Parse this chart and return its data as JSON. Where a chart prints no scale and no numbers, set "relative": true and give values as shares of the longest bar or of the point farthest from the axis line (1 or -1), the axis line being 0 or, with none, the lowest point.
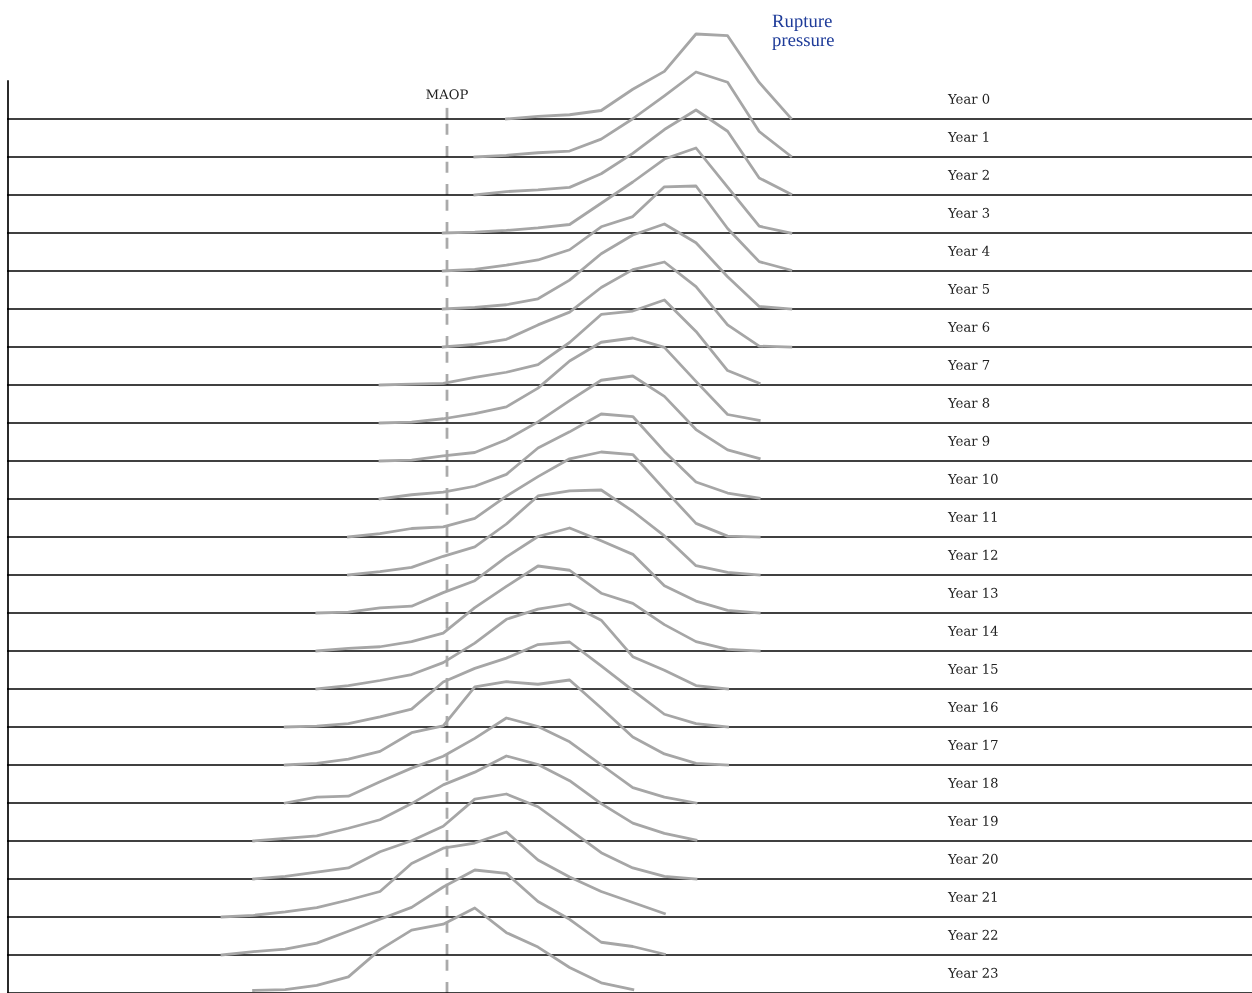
{
  "chart_data": [
    {
      "type": "line",
      "annotations": [
        "MAOP",
        "Rupture\npressure"
      ],
      "relative": true,
      "categories": [
        null,
        null,
        null,
        null,
        null,
        null,
        null,
        null,
        null,
        null,
        null,
        null,
        null,
        null,
        null,
        null,
        null,
        null,
        null
      ],
      "series": [
        {
          "name": "Year 0",
          "color": "#a6a6a6",
          "values": [
            null,
            null,
            null,
            null,
            null,
            null,
            null,
            null,
            null,
            0,
            0.03,
            0.05,
            0.1,
            0.35,
            0.56,
            1,
            0.98,
            0.43,
            0.01
          ]
        }
      ]
    },
    {
      "type": "line",
      "relative": true,
      "categories": [
        null,
        null,
        null,
        null,
        null,
        null,
        null,
        null,
        null,
        null,
        null,
        null,
        null,
        null,
        null,
        null,
        null,
        null,
        null
      ],
      "series": [
        {
          "name": "Year 1",
          "color": "#a6a6a6",
          "values": [
            null,
            null,
            null,
            null,
            null,
            null,
            null,
            null,
            0,
            0.02,
            0.05,
            0.07,
            0.21,
            0.45,
            0.72,
            1,
            0.88,
            0.3,
            0.01
          ]
        }
      ]
    },
    {
      "type": "line",
      "relative": true,
      "categories": [
        null,
        null,
        null,
        null,
        null,
        null,
        null,
        null,
        null,
        null,
        null,
        null,
        null,
        null,
        null,
        null,
        null,
        null,
        null
      ],
      "series": [
        {
          "name": "Year 2",
          "color": "#a6a6a6",
          "values": [
            null,
            null,
            null,
            null,
            null,
            null,
            null,
            null,
            0,
            0.04,
            0.06,
            0.09,
            0.25,
            0.49,
            0.77,
            1,
            0.75,
            0.2,
            0.01
          ]
        }
      ]
    },
    {
      "type": "line",
      "relative": true,
      "categories": [
        null,
        null,
        null,
        null,
        null,
        null,
        null,
        null,
        null,
        null,
        null,
        null,
        null,
        null,
        null,
        null,
        null,
        null,
        null
      ],
      "series": [
        {
          "name": "Year 3",
          "color": "#a6a6a6",
          "values": [
            null,
            null,
            null,
            null,
            null,
            null,
            null,
            0,
            0.01,
            0.03,
            0.06,
            0.1,
            0.35,
            0.6,
            0.87,
            1,
            0.54,
            0.08,
            0
          ]
        }
      ]
    },
    {
      "type": "line",
      "relative": true,
      "categories": [
        null,
        null,
        null,
        null,
        null,
        null,
        null,
        null,
        null,
        null,
        null,
        null,
        null,
        null,
        null,
        null,
        null,
        null,
        null
      ],
      "series": [
        {
          "name": "Year 4",
          "color": "#a6a6a6",
          "values": [
            null,
            null,
            null,
            null,
            null,
            null,
            null,
            0,
            0.02,
            0.07,
            0.13,
            0.25,
            0.52,
            0.64,
            0.99,
            1,
            0.5,
            0.11,
            0.01
          ]
        }
      ]
    },
    {
      "type": "line",
      "relative": true,
      "categories": [
        null,
        null,
        null,
        null,
        null,
        null,
        null,
        null,
        null,
        null,
        null,
        null,
        null,
        null,
        null,
        null,
        null,
        null,
        null
      ],
      "series": [
        {
          "name": "Year 5",
          "color": "#a6a6a6",
          "values": [
            null,
            null,
            null,
            null,
            null,
            null,
            null,
            0,
            0.02,
            0.05,
            0.12,
            0.34,
            0.65,
            0.87,
            1,
            0.78,
            0.38,
            0.03,
            0
          ]
        }
      ]
    },
    {
      "type": "line",
      "relative": true,
      "categories": [
        null,
        null,
        null,
        null,
        null,
        null,
        null,
        null,
        null,
        null,
        null,
        null,
        null,
        null,
        null,
        null,
        null,
        null,
        null
      ],
      "series": [
        {
          "name": "Year 6",
          "color": "#a6a6a6",
          "values": [
            null,
            null,
            null,
            null,
            null,
            null,
            null,
            0,
            0.03,
            0.09,
            0.26,
            0.41,
            0.7,
            0.91,
            1,
            0.71,
            0.26,
            0.01,
            0
          ]
        }
      ]
    },
    {
      "type": "line",
      "relative": true,
      "categories": [
        null,
        null,
        null,
        null,
        null,
        null,
        null,
        null,
        null,
        null,
        null,
        null,
        null,
        null,
        null,
        null,
        null,
        null,
        null
      ],
      "series": [
        {
          "name": "Year 7",
          "color": "#a6a6a6",
          "values": [
            null,
            null,
            null,
            null,
            null,
            0,
            0.01,
            0.02,
            0.09,
            0.15,
            0.24,
            0.5,
            0.83,
            0.87,
            1,
            0.63,
            0.17,
            0.02,
            null
          ]
        }
      ]
    },
    {
      "type": "line",
      "relative": true,
      "categories": [
        null,
        null,
        null,
        null,
        null,
        null,
        null,
        null,
        null,
        null,
        null,
        null,
        null,
        null,
        null,
        null,
        null,
        null,
        null
      ],
      "series": [
        {
          "name": "Year 8",
          "color": "#a6a6a6",
          "values": [
            null,
            null,
            null,
            null,
            null,
            0,
            0.01,
            0.05,
            0.11,
            0.19,
            0.41,
            0.73,
            0.95,
            1,
            0.89,
            0.49,
            0.1,
            0.03,
            null
          ]
        }
      ]
    },
    {
      "type": "line",
      "relative": true,
      "categories": [
        null,
        null,
        null,
        null,
        null,
        null,
        null,
        null,
        null,
        null,
        null,
        null,
        null,
        null,
        null,
        null,
        null,
        null,
        null
      ],
      "series": [
        {
          "name": "Year 9",
          "color": "#a6a6a6",
          "values": [
            null,
            null,
            null,
            null,
            null,
            0,
            0.01,
            0.06,
            0.1,
            0.25,
            0.46,
            0.71,
            0.95,
            1,
            0.76,
            0.37,
            0.13,
            0.03,
            null
          ]
        }
      ]
    },
    {
      "type": "line",
      "relative": true,
      "categories": [
        null,
        null,
        null,
        null,
        null,
        null,
        null,
        null,
        null,
        null,
        null,
        null,
        null,
        null,
        null,
        null,
        null,
        null,
        null
      ],
      "series": [
        {
          "name": "Year 10",
          "color": "#a6a6a6",
          "values": [
            null,
            null,
            null,
            null,
            null,
            0,
            0.05,
            0.08,
            0.15,
            0.29,
            0.6,
            0.79,
            1,
            0.97,
            0.56,
            0.2,
            0.07,
            0.01,
            null
          ]
        }
      ]
    },
    {
      "type": "line",
      "relative": true,
      "categories": [
        null,
        null,
        null,
        null,
        null,
        null,
        null,
        null,
        null,
        null,
        null,
        null,
        null,
        null,
        null,
        null,
        null,
        null,
        null
      ],
      "series": [
        {
          "name": "Year 11",
          "color": "#a6a6a6",
          "values": [
            null,
            null,
            null,
            null,
            0,
            0.04,
            0.1,
            0.12,
            0.22,
            0.48,
            0.71,
            0.92,
            1,
            0.97,
            0.56,
            0.16,
            0.01,
            0,
            null
          ]
        }
      ]
    },
    {
      "type": "line",
      "relative": true,
      "categories": [
        null,
        null,
        null,
        null,
        null,
        null,
        null,
        null,
        null,
        null,
        null,
        null,
        null,
        null,
        null,
        null,
        null,
        null,
        null
      ],
      "series": [
        {
          "name": "Year 12",
          "color": "#a6a6a6",
          "values": [
            null,
            null,
            null,
            null,
            0,
            0.04,
            0.09,
            0.22,
            0.33,
            0.6,
            0.93,
            0.99,
            1,
            0.75,
            0.46,
            0.11,
            0.03,
            0,
            null
          ]
        }
      ]
    },
    {
      "type": "line",
      "relative": true,
      "categories": [
        null,
        null,
        null,
        null,
        null,
        null,
        null,
        null,
        null,
        null,
        null,
        null,
        null,
        null,
        null,
        null,
        null,
        null,
        null
      ],
      "series": [
        {
          "name": "Year 13",
          "color": "#a6a6a6",
          "values": [
            null,
            null,
            null,
            0,
            0.01,
            0.06,
            0.08,
            0.24,
            0.38,
            0.66,
            0.9,
            1,
            0.85,
            0.69,
            0.32,
            0.14,
            0.03,
            0,
            null
          ]
        }
      ]
    },
    {
      "type": "line",
      "relative": true,
      "categories": [
        null,
        null,
        null,
        null,
        null,
        null,
        null,
        null,
        null,
        null,
        null,
        null,
        null,
        null,
        null,
        null,
        null,
        null,
        null
      ],
      "series": [
        {
          "name": "Year 14",
          "color": "#a6a6a6",
          "values": [
            null,
            null,
            null,
            0,
            0.03,
            0.05,
            0.11,
            0.21,
            0.51,
            0.76,
            1,
            0.95,
            0.68,
            0.56,
            0.31,
            0.11,
            0.02,
            0,
            null
          ]
        }
      ]
    },
    {
      "type": "line",
      "relative": true,
      "categories": [
        null,
        null,
        null,
        null,
        null,
        null,
        null,
        null,
        null,
        null,
        null,
        null,
        null,
        null,
        null,
        null,
        null,
        null,
        null
      ],
      "series": [
        {
          "name": "Year 15",
          "color": "#a6a6a6",
          "values": [
            null,
            null,
            null,
            0,
            0.04,
            0.1,
            0.17,
            0.31,
            0.54,
            0.82,
            0.94,
            1,
            0.81,
            0.38,
            0.22,
            0.04,
            0,
            null,
            null
          ]
        }
      ]
    },
    {
      "type": "line",
      "relative": true,
      "categories": [
        null,
        null,
        null,
        null,
        null,
        null,
        null,
        null,
        null,
        null,
        null,
        null,
        null,
        null,
        null,
        null,
        null,
        null,
        null
      ],
      "series": [
        {
          "name": "Year 16",
          "color": "#a6a6a6",
          "values": [
            null,
            null,
            0,
            0.01,
            0.04,
            0.12,
            0.21,
            0.53,
            0.69,
            0.81,
            0.97,
            1,
            0.72,
            0.43,
            0.15,
            0.04,
            0,
            null,
            null
          ]
        }
      ]
    },
    {
      "type": "line",
      "relative": true,
      "categories": [
        null,
        null,
        null,
        null,
        null,
        null,
        null,
        null,
        null,
        null,
        null,
        null,
        null,
        null,
        null,
        null,
        null,
        null,
        null
      ],
      "series": [
        {
          "name": "Year 17",
          "color": "#a6a6a6",
          "values": [
            null,
            null,
            0,
            0.02,
            0.07,
            0.16,
            0.38,
            0.46,
            0.92,
            0.98,
            0.95,
            1,
            0.67,
            0.33,
            0.13,
            0.02,
            0,
            null,
            null
          ]
        }
      ]
    },
    {
      "type": "line",
      "relative": true,
      "categories": [
        null,
        null,
        null,
        null,
        null,
        null,
        null,
        null,
        null,
        null,
        null,
        null,
        null,
        null,
        null,
        null,
        null,
        null,
        null
      ],
      "series": [
        {
          "name": "Year 18",
          "color": "#a6a6a6",
          "values": [
            null,
            null,
            0,
            0.07,
            0.08,
            0.25,
            0.41,
            0.55,
            0.76,
            1,
            0.9,
            0.72,
            0.45,
            0.18,
            0.07,
            0,
            null,
            null,
            null
          ]
        }
      ]
    },
    {
      "type": "line",
      "relative": true,
      "categories": [
        null,
        null,
        null,
        null,
        null,
        null,
        null,
        null,
        null,
        null,
        null,
        null,
        null,
        null,
        null,
        null,
        null,
        null,
        null
      ],
      "series": [
        {
          "name": "Year 19",
          "color": "#a6a6a6",
          "values": [
            null,
            0,
            0.03,
            0.06,
            0.15,
            0.25,
            0.44,
            0.66,
            0.81,
            1,
            0.9,
            0.71,
            0.44,
            0.21,
            0.09,
            0.01,
            null,
            null,
            null
          ]
        }
      ]
    },
    {
      "type": "line",
      "relative": true,
      "categories": [
        null,
        null,
        null,
        null,
        null,
        null,
        null,
        null,
        null,
        null,
        null,
        null,
        null,
        null,
        null,
        null,
        null,
        null,
        null
      ],
      "series": [
        {
          "name": "Year 20",
          "color": "#a6a6a6",
          "values": [
            null,
            0,
            0.03,
            0.08,
            0.13,
            0.32,
            0.45,
            0.62,
            0.94,
            1,
            0.85,
            0.58,
            0.31,
            0.13,
            0.03,
            0,
            null,
            null,
            null
          ]
        }
      ]
    },
    {
      "type": "line",
      "relative": true,
      "categories": [
        null,
        null,
        null,
        null,
        null,
        null,
        null,
        null,
        null,
        null,
        null,
        null,
        null,
        null,
        null,
        null,
        null,
        null,
        null
      ],
      "series": [
        {
          "name": "Year 21",
          "color": "#a6a6a6",
          "values": [
            0,
            0.02,
            0.06,
            0.11,
            0.2,
            0.3,
            0.63,
            0.81,
            0.87,
            1,
            0.67,
            0.47,
            0.3,
            0.17,
            0.04,
            null,
            null,
            null,
            null
          ]
        }
      ]
    },
    {
      "type": "line",
      "relative": true,
      "categories": [
        null,
        null,
        null,
        null,
        null,
        null,
        null,
        null,
        null,
        null,
        null,
        null,
        null,
        null,
        null,
        null,
        null,
        null,
        null
      ],
      "series": [
        {
          "name": "Year 22",
          "color": "#a6a6a6",
          "values": [
            0,
            0.04,
            0.07,
            0.14,
            0.28,
            0.42,
            0.56,
            0.8,
            1,
            0.96,
            0.63,
            0.42,
            0.15,
            0.1,
            0.01,
            null,
            null,
            null,
            null
          ]
        }
      ]
    },
    {
      "type": "line",
      "relative": true,
      "categories": [
        null,
        null,
        null,
        null,
        null,
        null,
        null,
        null,
        null,
        null,
        null,
        null,
        null,
        null,
        null,
        null,
        null,
        null,
        null
      ],
      "series": [
        {
          "name": "Year 23",
          "color": "#a6a6a6",
          "values": [
            null,
            0.03,
            0.04,
            0.09,
            0.19,
            0.51,
            0.74,
            0.81,
            1,
            0.71,
            0.54,
            0.3,
            0.12,
            0.04,
            null,
            null,
            null,
            null,
            null
          ]
        }
      ]
    }
  ]
}
